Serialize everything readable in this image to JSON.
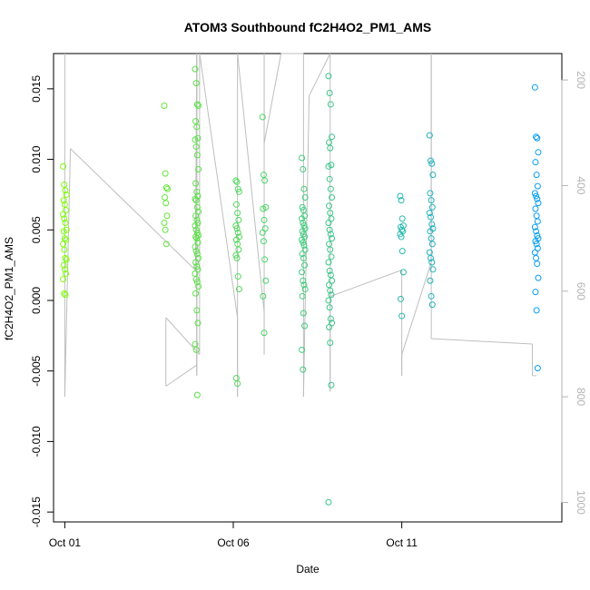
{
  "chart_data": {
    "type": "scatter",
    "title": "ATOM3 Southbound fC2H4O2_PM1_AMS",
    "xlabel": "Date",
    "ylabel": "fC2H4O2_PM1_AMS",
    "x_ticks": [
      "Oct 01",
      "Oct 06",
      "Oct 11"
    ],
    "y_ticks": [
      "-0.015",
      "-0.010",
      "-0.005",
      "0.000",
      "0.005",
      "0.010",
      "0.015"
    ],
    "y_tick_values": [
      -0.015,
      -0.01,
      -0.005,
      0.0,
      0.005,
      0.01,
      0.015
    ],
    "secondary_y_ticks": [
      "200",
      "400",
      "600",
      "800",
      "1000"
    ],
    "secondary_y_tick_values": [
      200,
      400,
      600,
      800,
      1000
    ],
    "xlim": [
      "2016-09-30T16:00",
      "2016-10-15T18:00"
    ],
    "ylim": [
      -0.0157,
      0.0175
    ],
    "secondary_ylim": [
      1037,
      150
    ],
    "grid": false,
    "legend": "none",
    "point_style": "open circle, colored by date (green to blue)",
    "colors": {
      "start": "#80ff00",
      "end": "#0099ff",
      "altitude_line": "#bebebe"
    },
    "series": [
      {
        "x": "2016-10-01T00:00",
        "values": [
          0.0095,
          0.0082,
          0.0078,
          0.0075,
          0.0071,
          0.0068,
          0.0064,
          0.0061,
          0.0058,
          0.0055,
          0.005,
          0.0049,
          0.0044,
          0.0043,
          0.004,
          0.0036,
          0.003,
          0.0029,
          0.0025,
          0.0022,
          0.0019,
          0.0015,
          0.0005,
          0.0004
        ]
      },
      {
        "x": "2016-10-04T00:00",
        "values": [
          0.0138,
          0.009,
          0.008,
          0.0079,
          0.0073,
          0.0069,
          0.006,
          0.0055,
          0.005,
          0.004
        ]
      },
      {
        "x": "2016-10-04T22:00",
        "values": [
          0.0164,
          0.0154,
          0.0139,
          0.0138,
          0.0127,
          0.0123,
          0.0115,
          0.0114,
          0.0109,
          0.0103,
          0.0093,
          0.0083,
          0.0077,
          0.0074,
          0.0072,
          0.0071,
          0.0066,
          0.0063,
          0.006,
          0.0057,
          0.0055,
          0.0053,
          0.005,
          0.0048,
          0.0046,
          0.0045,
          0.0044,
          0.0041,
          0.0038,
          0.0035,
          0.0033,
          0.003,
          0.0027,
          0.0024,
          0.0022,
          0.0019,
          0.0015,
          0.0013,
          0.001,
          0.0005,
          -0.0007,
          -0.0016,
          -0.0031,
          -0.0035,
          -0.0067
        ]
      },
      {
        "x": "2016-10-06T03:00",
        "values": [
          0.0085,
          0.0084,
          0.0079,
          0.0077,
          0.0068,
          0.0062,
          0.0057,
          0.0053,
          0.0051,
          0.0048,
          0.0045,
          0.0043,
          0.004,
          0.0036,
          0.0032,
          0.003,
          0.0017,
          0.0008,
          -0.0055,
          -0.0059
        ]
      },
      {
        "x": "2016-10-06T22:00",
        "values": [
          0.013,
          0.0089,
          0.0085,
          0.0066,
          0.0065,
          0.0057,
          0.0051,
          0.0048,
          0.0042,
          0.0029,
          0.0014,
          0.0003,
          -0.0023
        ]
      },
      {
        "x": "2016-10-08T02:00",
        "values": [
          0.0101,
          0.0093,
          0.0079,
          0.0073,
          0.0066,
          0.0064,
          0.006,
          0.0058,
          0.0055,
          0.0053,
          0.0051,
          0.0049,
          0.0047,
          0.0045,
          0.0043,
          0.0041,
          0.0039,
          0.0036,
          0.0033,
          0.003,
          0.0025,
          0.002,
          0.0014,
          0.0011,
          0.0008,
          0.0003,
          -0.0009,
          -0.0018,
          -0.0035,
          -0.0049
        ]
      },
      {
        "x": "2016-10-08T21:00",
        "values": [
          0.0159,
          0.0147,
          0.0139,
          0.0116,
          0.0112,
          0.0108,
          0.0096,
          0.0095,
          0.0086,
          0.0079,
          0.0073,
          0.0067,
          0.0062,
          0.0058,
          0.0055,
          0.005,
          0.0047,
          0.0044,
          0.004,
          0.0036,
          0.0031,
          0.0027,
          0.0021,
          0.0018,
          0.0014,
          0.0011,
          0.0007,
          0.0004,
          0.0,
          -0.0005,
          -0.0013,
          -0.0016,
          -0.0019,
          -0.003,
          -0.006,
          -0.0143
        ]
      },
      {
        "x": "2016-10-11T00:00",
        "values": [
          0.0074,
          0.0071,
          0.0058,
          0.0053,
          0.0052,
          0.005,
          0.0049,
          0.0047,
          0.0045,
          0.0035,
          0.002,
          0.0001,
          -0.0011
        ]
      },
      {
        "x": "2016-10-11T21:00",
        "values": [
          0.0117,
          0.0099,
          0.0097,
          0.0089,
          0.0076,
          0.0071,
          0.0066,
          0.0062,
          0.0059,
          0.0054,
          0.0051,
          0.0049,
          0.0044,
          0.004,
          0.0034,
          0.003,
          0.0027,
          0.0022,
          0.0014,
          0.0003,
          -0.0003
        ]
      },
      {
        "x": "2016-10-15T00:00",
        "values": [
          0.0151,
          0.0116,
          0.0115,
          0.0105,
          0.0098,
          0.0089,
          0.0081,
          0.0076,
          0.0074,
          0.0072,
          0.0069,
          0.0065,
          0.006,
          0.0056,
          0.0052,
          0.0049,
          0.0046,
          0.0044,
          0.0042,
          0.004,
          0.0037,
          0.0034,
          0.003,
          0.0026,
          0.0016,
          0.0006,
          -0.0007,
          -0.0048
        ]
      }
    ],
    "altitude_series": [
      {
        "x": "2016-10-01T00:00",
        "values": [
          150,
          800
        ]
      },
      {
        "x": "2016-10-01T04:00",
        "values": [
          330
        ]
      },
      {
        "x": "2016-10-04T21:00",
        "values": [
          560
        ]
      },
      {
        "x": "2016-10-04T22:00",
        "values": [
          150,
          760,
          150,
          740
        ]
      },
      {
        "x": "2016-10-04T00:00",
        "values": [
          780,
          760,
          650
        ]
      },
      {
        "x": "2016-10-05T00:00",
        "values": [
          720,
          150
        ]
      },
      {
        "x": "2016-10-06T03:00",
        "values": [
          650,
          800,
          150
        ]
      },
      {
        "x": "2016-10-06T22:00",
        "values": [
          640,
          720,
          150,
          320
        ]
      },
      {
        "x": "2016-10-07T10:00",
        "values": [
          150
        ]
      },
      {
        "x": "2016-10-08T02:00",
        "values": [
          150,
          800
        ]
      },
      {
        "x": "2016-10-08T06:00",
        "values": [
          230
        ]
      },
      {
        "x": "2016-10-08T21:00",
        "values": [
          150,
          790,
          610
        ]
      },
      {
        "x": "2016-10-11T00:00",
        "values": [
          560,
          760,
          720
        ]
      },
      {
        "x": "2016-10-11T21:00",
        "values": [
          545,
          150,
          690
        ]
      },
      {
        "x": "2016-10-14T21:00",
        "values": [
          700,
          760
        ]
      },
      {
        "x": "2016-10-15T00:00",
        "values": [
          760
        ]
      }
    ]
  }
}
